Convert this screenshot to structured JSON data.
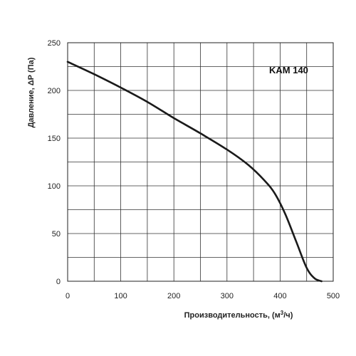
{
  "chart_data": {
    "type": "line",
    "title": "",
    "curve_label": "KAM 140",
    "xlabel": "Производительность, (м³/ч)",
    "ylabel": "Давление, ΔР (Па)",
    "xlim": [
      0,
      500
    ],
    "ylim": [
      0,
      250
    ],
    "x_ticks": [
      0,
      100,
      200,
      300,
      400,
      500
    ],
    "y_ticks": [
      0,
      50,
      100,
      150,
      200,
      250
    ],
    "x_minor_step": 50,
    "y_minor_step": 25,
    "grid": true,
    "legend": "none",
    "line_color": "#1a1a1a",
    "series": [
      {
        "x": [
          0,
          50,
          100,
          150,
          200,
          250,
          300,
          340,
          370,
          390,
          410,
          430,
          450,
          465,
          478
        ],
        "y": [
          230,
          217,
          203,
          188,
          171,
          155,
          138,
          122,
          106,
          92,
          70,
          42,
          14,
          3,
          0
        ]
      }
    ]
  }
}
